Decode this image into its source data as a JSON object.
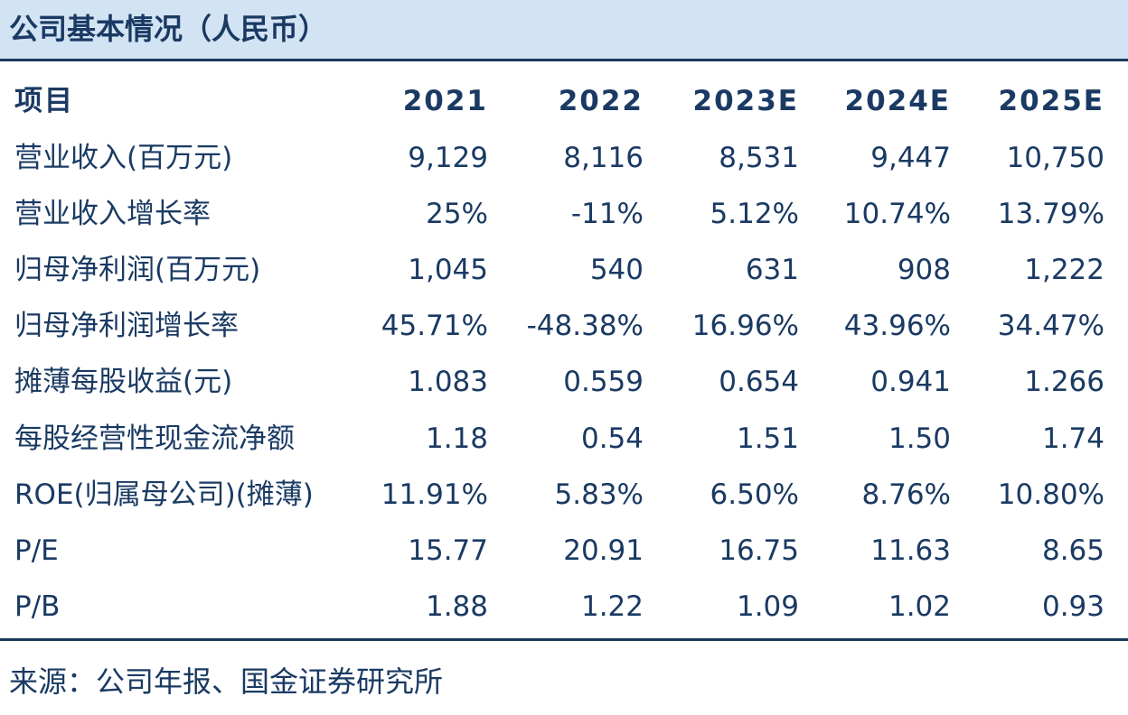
{
  "header": {
    "title": "公司基本情况（人民币）"
  },
  "table": {
    "columns": [
      "项目",
      "2021",
      "2022",
      "2023E",
      "2024E",
      "2025E"
    ],
    "rows": [
      [
        "营业收入(百万元)",
        "9,129",
        "8,116",
        "8,531",
        "9,447",
        "10,750"
      ],
      [
        "营业收入增长率",
        "25%",
        "-11%",
        "5.12%",
        "10.74%",
        "13.79%"
      ],
      [
        "归母净利润(百万元)",
        "1,045",
        "540",
        "631",
        "908",
        "1,222"
      ],
      [
        "归母净利润增长率",
        "45.71%",
        "-48.38%",
        "16.96%",
        "43.96%",
        "34.47%"
      ],
      [
        "摊薄每股收益(元)",
        "1.083",
        "0.559",
        "0.654",
        "0.941",
        "1.266"
      ],
      [
        "每股经营性现金流净额",
        "1.18",
        "0.54",
        "1.51",
        "1.50",
        "1.74"
      ],
      [
        "ROE(归属母公司)(摊薄)",
        "11.91%",
        "5.83%",
        "6.50%",
        "8.76%",
        "10.80%"
      ],
      [
        "P/E",
        "15.77",
        "20.91",
        "16.75",
        "11.63",
        "8.65"
      ],
      [
        "P/B",
        "1.88",
        "1.22",
        "1.09",
        "1.02",
        "0.93"
      ]
    ]
  },
  "source": "来源：公司年报、国金证券研究所"
}
